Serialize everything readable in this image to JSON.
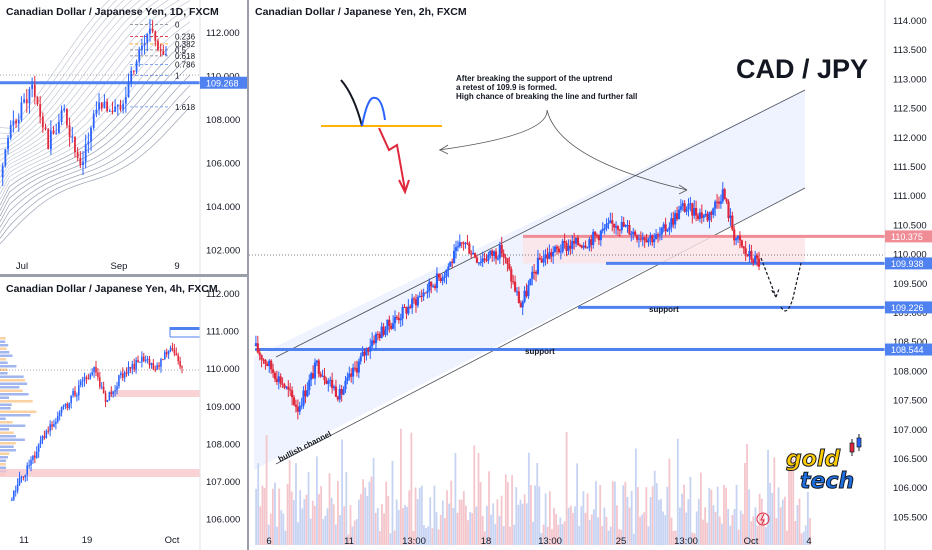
{
  "colors": {
    "up": "#2962ff",
    "down": "#e0283c",
    "sr": "#4f82f0",
    "resistance": "#f08c96",
    "channel_fill": "#e8efff",
    "fib_gray": "#787b86",
    "fib_blue": "#5b8def",
    "fib_orange": "#ff9800",
    "fib_red": "#e0283c",
    "gold": "#ffcc00",
    "tech_blue": "#1e6fe0"
  },
  "daily_panel": {
    "title": "Canadian Dollar / Japanese Yen, 1D, FXCM",
    "y_ticks": [
      "112.000",
      "110.000",
      "108.000",
      "106.000",
      "104.000",
      "102.000"
    ],
    "x_ticks": [
      "Jul",
      "Sep",
      "9"
    ],
    "price_tag": "109.268",
    "fib_levels": [
      {
        "label": "0",
        "value": 0
      },
      {
        "label": "0.236",
        "value": 0.236
      },
      {
        "label": "0.382",
        "value": 0.382
      },
      {
        "label": "0.5",
        "value": 0.5
      },
      {
        "label": "0.618",
        "value": 0.618
      },
      {
        "label": "0.786",
        "value": 0.786
      },
      {
        "label": "1",
        "value": 1
      },
      {
        "label": "1.618",
        "value": 1.618
      }
    ]
  },
  "h4_panel": {
    "title": "Canadian Dollar / Japanese Yen, 4h, FXCM",
    "y_ticks": [
      "112.000",
      "111.000",
      "110.000",
      "109.000",
      "108.000",
      "107.000",
      "106.000"
    ],
    "x_ticks": [
      "11",
      "19",
      "Oct"
    ]
  },
  "main_panel": {
    "title": "Canadian Dollar / Japanese Yen, 2h, FXCM",
    "headline": "CAD / JPY",
    "annotation": [
      "After breaking the support of the uptrend",
      "a retest of 109.9 is formed.",
      "High chance of breaking the line and further fall"
    ],
    "support_label": "support",
    "support_label_2": "support",
    "channel_label": "bullish channel",
    "y_ticks": [
      "114.000",
      "113.500",
      "113.000",
      "112.500",
      "112.000",
      "111.500",
      "111.000",
      "110.500",
      "110.000",
      "109.500",
      "109.000",
      "108.500",
      "108.000",
      "107.500",
      "107.000",
      "106.500",
      "106.000",
      "105.500"
    ],
    "x_ticks": [
      "6",
      "11",
      "13:00",
      "18",
      "13:00",
      "25",
      "13:00",
      "Oct",
      "4"
    ],
    "price_tags": [
      {
        "label": "110.375",
        "value": 110.375,
        "kind": "resistance"
      },
      {
        "label": "109.938",
        "value": 109.938,
        "kind": "support"
      },
      {
        "label": "109.226",
        "value": 109.226,
        "kind": "support"
      },
      {
        "label": "108.544",
        "value": 108.544,
        "kind": "support"
      }
    ],
    "logo_top": "gold",
    "logo_bottom": "tech"
  },
  "chart_data": [
    {
      "type": "candlestick",
      "title": "Canadian Dollar / Japanese Yen, 2h, FXCM",
      "ylim": [
        105.3,
        114.2
      ],
      "x_ticks": [
        "6",
        "11",
        "13:00",
        "18",
        "13:00",
        "25",
        "13:00",
        "Oct",
        "4"
      ],
      "path_keypoints": [
        [
          0,
          108.6
        ],
        [
          15,
          108.0
        ],
        [
          23,
          107.6
        ],
        [
          33,
          108.3
        ],
        [
          45,
          107.8
        ],
        [
          62,
          108.7
        ],
        [
          80,
          109.2
        ],
        [
          100,
          109.8
        ],
        [
          110,
          110.3
        ],
        [
          118,
          110.0
        ],
        [
          130,
          110.15
        ],
        [
          140,
          109.25
        ],
        [
          150,
          110.0
        ],
        [
          162,
          110.2
        ],
        [
          175,
          110.3
        ],
        [
          190,
          110.6
        ],
        [
          202,
          110.4
        ],
        [
          212,
          110.35
        ],
        [
          225,
          110.85
        ],
        [
          238,
          110.7
        ],
        [
          246,
          111.1
        ],
        [
          252,
          110.4
        ],
        [
          258,
          110.1
        ],
        [
          265,
          109.95
        ]
      ],
      "levels": [
        110.375,
        109.938,
        109.226,
        108.544
      ]
    },
    {
      "type": "candlestick",
      "title": "Canadian Dollar / Japanese Yen, 1D, FXCM",
      "ylim": [
        101.5,
        113.0
      ],
      "x_ticks": [
        "Jul",
        "Sep",
        "9"
      ],
      "path_keypoints": [
        [
          0,
          105.0
        ],
        [
          5,
          107.5
        ],
        [
          12,
          109.0
        ],
        [
          18,
          106.5
        ],
        [
          24,
          108.0
        ],
        [
          30,
          105.2
        ],
        [
          36,
          108.3
        ],
        [
          44,
          108.0
        ],
        [
          50,
          110.0
        ],
        [
          56,
          111.7
        ],
        [
          62,
          110.4
        ]
      ],
      "fib_levels": [
        0,
        0.236,
        0.382,
        0.5,
        0.618,
        0.786,
        1,
        1.618
      ],
      "levels": [
        109.268
      ]
    },
    {
      "type": "candlestick",
      "title": "Canadian Dollar / Japanese Yen, 4h, FXCM",
      "ylim": [
        105.8,
        112.4
      ],
      "x_ticks": [
        "11",
        "19",
        "Oct"
      ],
      "path_keypoints": [
        [
          0,
          107.0
        ],
        [
          10,
          107.9
        ],
        [
          22,
          108.8
        ],
        [
          34,
          109.6
        ],
        [
          44,
          110.2
        ],
        [
          50,
          109.4
        ],
        [
          58,
          110.0
        ],
        [
          68,
          110.4
        ],
        [
          76,
          110.2
        ],
        [
          84,
          110.8
        ],
        [
          90,
          110.1
        ]
      ]
    }
  ]
}
